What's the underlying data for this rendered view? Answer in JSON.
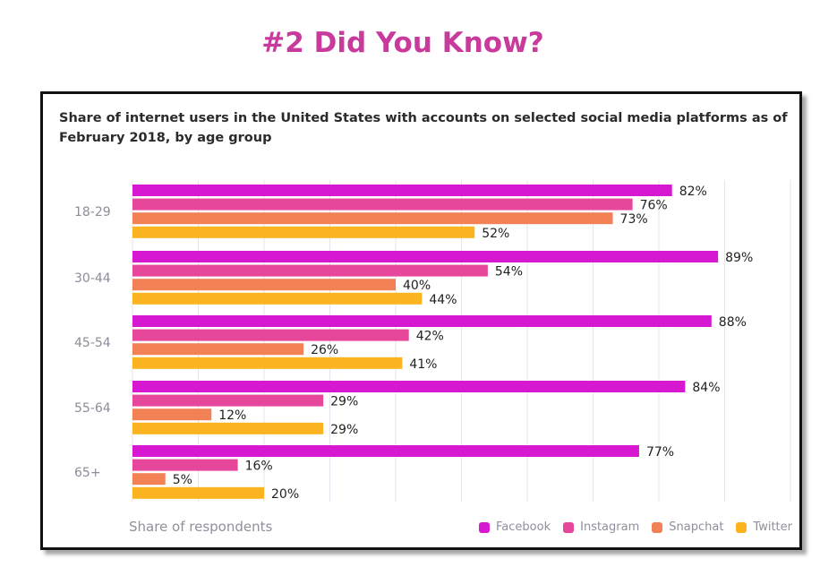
{
  "header": {
    "title": "#2 Did You Know?"
  },
  "chart_data": {
    "type": "bar",
    "orientation": "horizontal",
    "title": "Share of internet users in the United States with accounts on selected social media platforms as of February 2018, by age group",
    "xlabel": "Share of respondents",
    "ylabel": "",
    "xlim": [
      0,
      100
    ],
    "grid": true,
    "legend_position": "bottom-right",
    "value_suffix": "%",
    "categories": [
      "18-29",
      "30-44",
      "45-54",
      "55-64",
      "65+"
    ],
    "series": [
      {
        "name": "Facebook",
        "color": "#d619d1",
        "values": [
          82,
          89,
          88,
          84,
          77
        ]
      },
      {
        "name": "Instagram",
        "color": "#e6479b",
        "values": [
          76,
          54,
          42,
          29,
          16
        ]
      },
      {
        "name": "Snapchat",
        "color": "#f28156",
        "values": [
          73,
          40,
          26,
          12,
          5
        ]
      },
      {
        "name": "Twitter",
        "color": "#fbb320",
        "values": [
          52,
          44,
          41,
          29,
          20
        ]
      }
    ]
  }
}
